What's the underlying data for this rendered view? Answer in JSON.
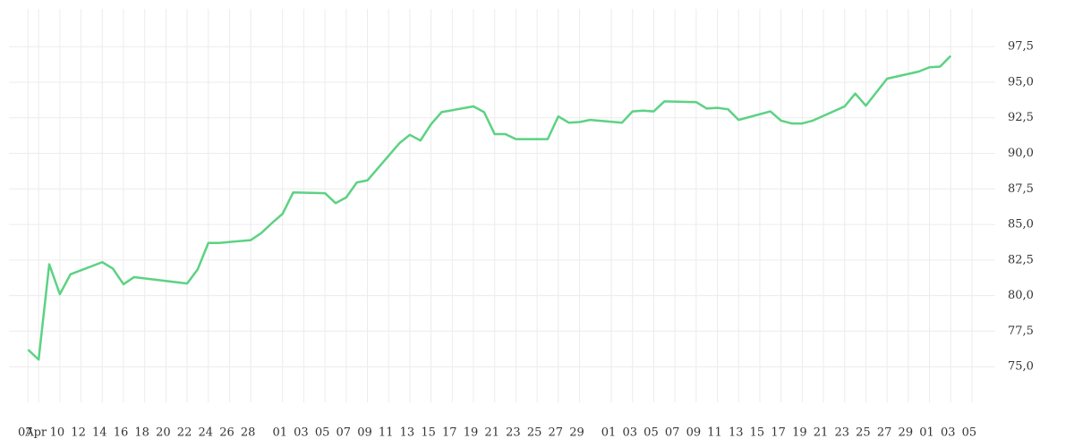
{
  "chart_data": {
    "type": "line",
    "x": [
      0,
      1,
      2,
      3,
      4,
      7,
      8,
      9,
      10,
      15,
      16,
      17,
      18,
      21,
      22,
      23,
      24,
      25,
      28,
      29,
      30,
      31,
      32,
      35,
      36,
      37,
      38,
      39,
      42,
      43,
      44,
      45,
      46,
      49,
      50,
      51,
      52,
      53,
      56,
      57,
      58,
      59,
      60,
      63,
      64,
      65,
      66,
      67,
      70,
      71,
      72,
      73,
      74,
      77,
      78,
      79,
      81,
      84,
      85,
      86,
      87
    ],
    "series": [
      {
        "color": "#5cd283",
        "values": [
          76.2,
          75.5,
          82.2,
          80.1,
          81.5,
          82.35,
          81.9,
          80.8,
          81.3,
          80.85,
          81.85,
          83.7,
          83.7,
          83.9,
          84.4,
          85.1,
          85.75,
          87.25,
          87.2,
          86.5,
          86.9,
          87.95,
          88.1,
          90.7,
          91.3,
          90.9,
          92.05,
          92.9,
          93.3,
          92.9,
          91.35,
          91.35,
          91.0,
          91.0,
          92.6,
          92.15,
          92.2,
          92.35,
          92.15,
          92.95,
          93.0,
          92.95,
          93.65,
          93.6,
          93.15,
          93.2,
          93.1,
          92.35,
          92.95,
          92.3,
          92.1,
          92.1,
          92.3,
          93.3,
          94.2,
          93.35,
          95.25,
          95.75,
          96.05,
          96.1,
          96.85
        ]
      }
    ],
    "xlim": [
      -1.8,
      91.2
    ],
    "ylim": [
      72.5,
      100.15
    ],
    "yticks": [
      {
        "value": 75,
        "label": "75,0"
      },
      {
        "value": 77.5,
        "label": "77,5"
      },
      {
        "value": 80,
        "label": "80,0"
      },
      {
        "value": 82.5,
        "label": "82,5"
      },
      {
        "value": 85,
        "label": "85,0"
      },
      {
        "value": 87.5,
        "label": "87,5"
      },
      {
        "value": 90,
        "label": "90,0"
      },
      {
        "value": 92.5,
        "label": "92,5"
      },
      {
        "value": 95,
        "label": "95,0"
      },
      {
        "value": 97.5,
        "label": "97,5"
      }
    ],
    "xticks": [
      {
        "value": 0,
        "label": "07"
      },
      {
        "value": 1,
        "label": "Apr"
      },
      {
        "value": 3,
        "label": "10"
      },
      {
        "value": 5,
        "label": "12"
      },
      {
        "value": 7,
        "label": "14"
      },
      {
        "value": 9,
        "label": "16"
      },
      {
        "value": 11,
        "label": "18"
      },
      {
        "value": 13,
        "label": "20"
      },
      {
        "value": 15,
        "label": "22"
      },
      {
        "value": 17,
        "label": "24"
      },
      {
        "value": 19,
        "label": "26"
      },
      {
        "value": 21,
        "label": "28"
      },
      {
        "value": 24,
        "label": "01"
      },
      {
        "value": 26,
        "label": "03"
      },
      {
        "value": 28,
        "label": "05"
      },
      {
        "value": 30,
        "label": "07"
      },
      {
        "value": 32,
        "label": "09"
      },
      {
        "value": 34,
        "label": "11"
      },
      {
        "value": 36,
        "label": "13"
      },
      {
        "value": 38,
        "label": "15"
      },
      {
        "value": 40,
        "label": "17"
      },
      {
        "value": 42,
        "label": "19"
      },
      {
        "value": 44,
        "label": "21"
      },
      {
        "value": 46,
        "label": "23"
      },
      {
        "value": 48,
        "label": "25"
      },
      {
        "value": 50,
        "label": "27"
      },
      {
        "value": 52,
        "label": "29"
      },
      {
        "value": 55,
        "label": "01"
      },
      {
        "value": 57,
        "label": "03"
      },
      {
        "value": 59,
        "label": "05"
      },
      {
        "value": 61,
        "label": "07"
      },
      {
        "value": 63,
        "label": "09"
      },
      {
        "value": 65,
        "label": "11"
      },
      {
        "value": 67,
        "label": "13"
      },
      {
        "value": 69,
        "label": "15"
      },
      {
        "value": 71,
        "label": "17"
      },
      {
        "value": 73,
        "label": "19"
      },
      {
        "value": 75,
        "label": "21"
      },
      {
        "value": 77,
        "label": "23"
      },
      {
        "value": 79,
        "label": "25"
      },
      {
        "value": 81,
        "label": "27"
      },
      {
        "value": 83,
        "label": "29"
      },
      {
        "value": 85,
        "label": "01"
      },
      {
        "value": 87,
        "label": "03"
      },
      {
        "value": 89,
        "label": "05"
      }
    ],
    "grid": true
  }
}
